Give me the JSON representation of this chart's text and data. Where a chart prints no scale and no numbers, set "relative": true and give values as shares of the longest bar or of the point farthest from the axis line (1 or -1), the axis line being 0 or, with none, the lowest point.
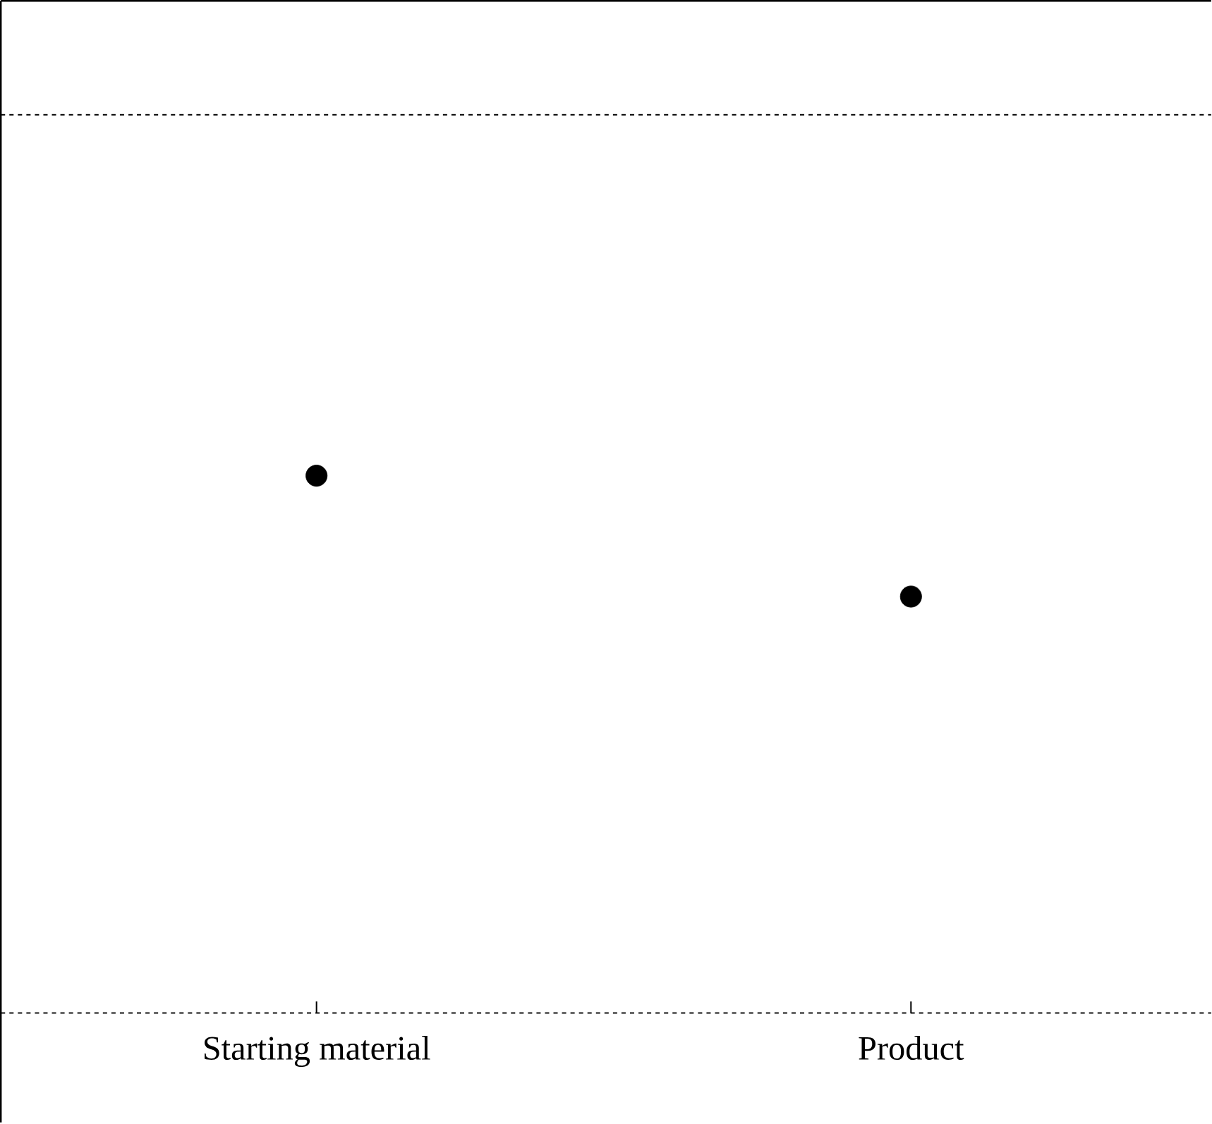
{
  "chart_data": {
    "type": "scatter",
    "relative": true,
    "categories": [
      "Starting material",
      "Product"
    ],
    "series": [
      {
        "color": "#000000",
        "values": [
          1,
          0.775
        ]
      }
    ],
    "ref_lines": [
      {
        "axis": "y",
        "value": 1.672,
        "line_style": "dashed"
      }
    ]
  }
}
